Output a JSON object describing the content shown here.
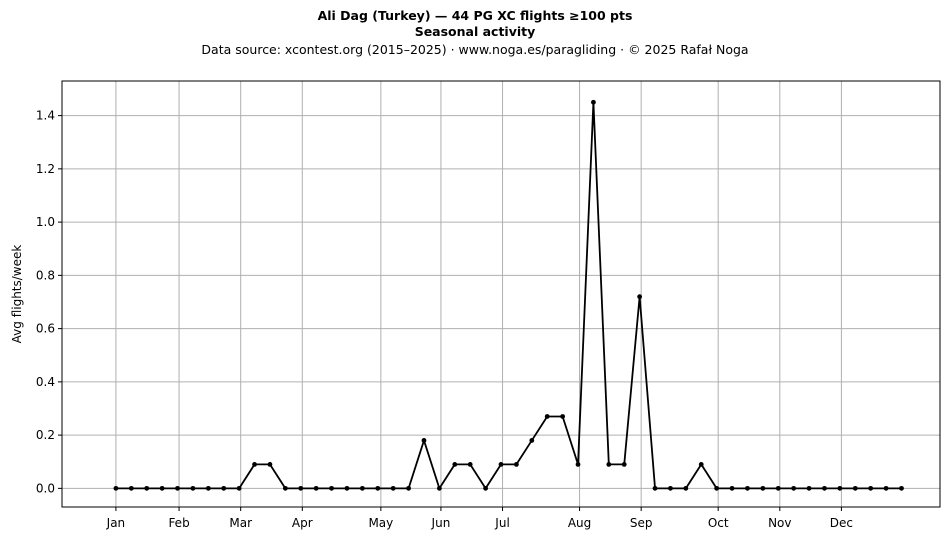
{
  "chart_data": {
    "type": "line",
    "title": "Ali Dag (Turkey)  —  44 PG XC flights ≥100 pts",
    "subtitle": "Seasonal activity",
    "source_line": "Data source: xcontest.org (2015–2025)  ·  www.noga.es/paragliding  ·  © 2025 Rafał Noga",
    "xlabel": "",
    "ylabel": "Avg flights/week",
    "grid": true,
    "ylim": [
      -0.07,
      1.53
    ],
    "y_ticks": [
      0.0,
      0.2,
      0.4,
      0.6,
      0.8,
      1.0,
      1.2,
      1.4
    ],
    "y_tick_labels": [
      "0.0",
      "0.2",
      "0.4",
      "0.6",
      "0.8",
      "1.0",
      "1.2",
      "1.4"
    ],
    "xlim": [
      -3.5,
      53.5
    ],
    "x_ticks": [
      0,
      4.1,
      8.1,
      12.1,
      17.2,
      21.1,
      25.1,
      30.1,
      34.1,
      39.1,
      43.1,
      47.1
    ],
    "x_tick_labels": [
      "Jan",
      "Feb",
      "Mar",
      "Apr",
      "May",
      "Jun",
      "Jul",
      "Aug",
      "Sep",
      "Oct",
      "Nov",
      "Dec"
    ],
    "series": [
      {
        "color": "#000000",
        "x": [
          0,
          1,
          2,
          3,
          4,
          5,
          6,
          7,
          8,
          9,
          10,
          11,
          12,
          13,
          14,
          15,
          16,
          17,
          18,
          19,
          20,
          21,
          22,
          23,
          24,
          25,
          26,
          27,
          28,
          29,
          30,
          31,
          32,
          33,
          34,
          35,
          36,
          37,
          38,
          39,
          40,
          41,
          42,
          43,
          44,
          45,
          46,
          47,
          48,
          49,
          50,
          51
        ],
        "values": [
          0,
          0,
          0,
          0,
          0,
          0,
          0,
          0,
          0,
          0.09,
          0.09,
          0,
          0,
          0,
          0,
          0,
          0,
          0,
          0,
          0,
          0.18,
          0,
          0.09,
          0.09,
          0,
          0.09,
          0.09,
          0.18,
          0.27,
          0.27,
          0.09,
          1.45,
          0.09,
          0.09,
          0.72,
          0,
          0,
          0,
          0.09,
          0,
          0,
          0,
          0,
          0,
          0,
          0,
          0,
          0,
          0,
          0,
          0,
          0
        ]
      }
    ]
  }
}
